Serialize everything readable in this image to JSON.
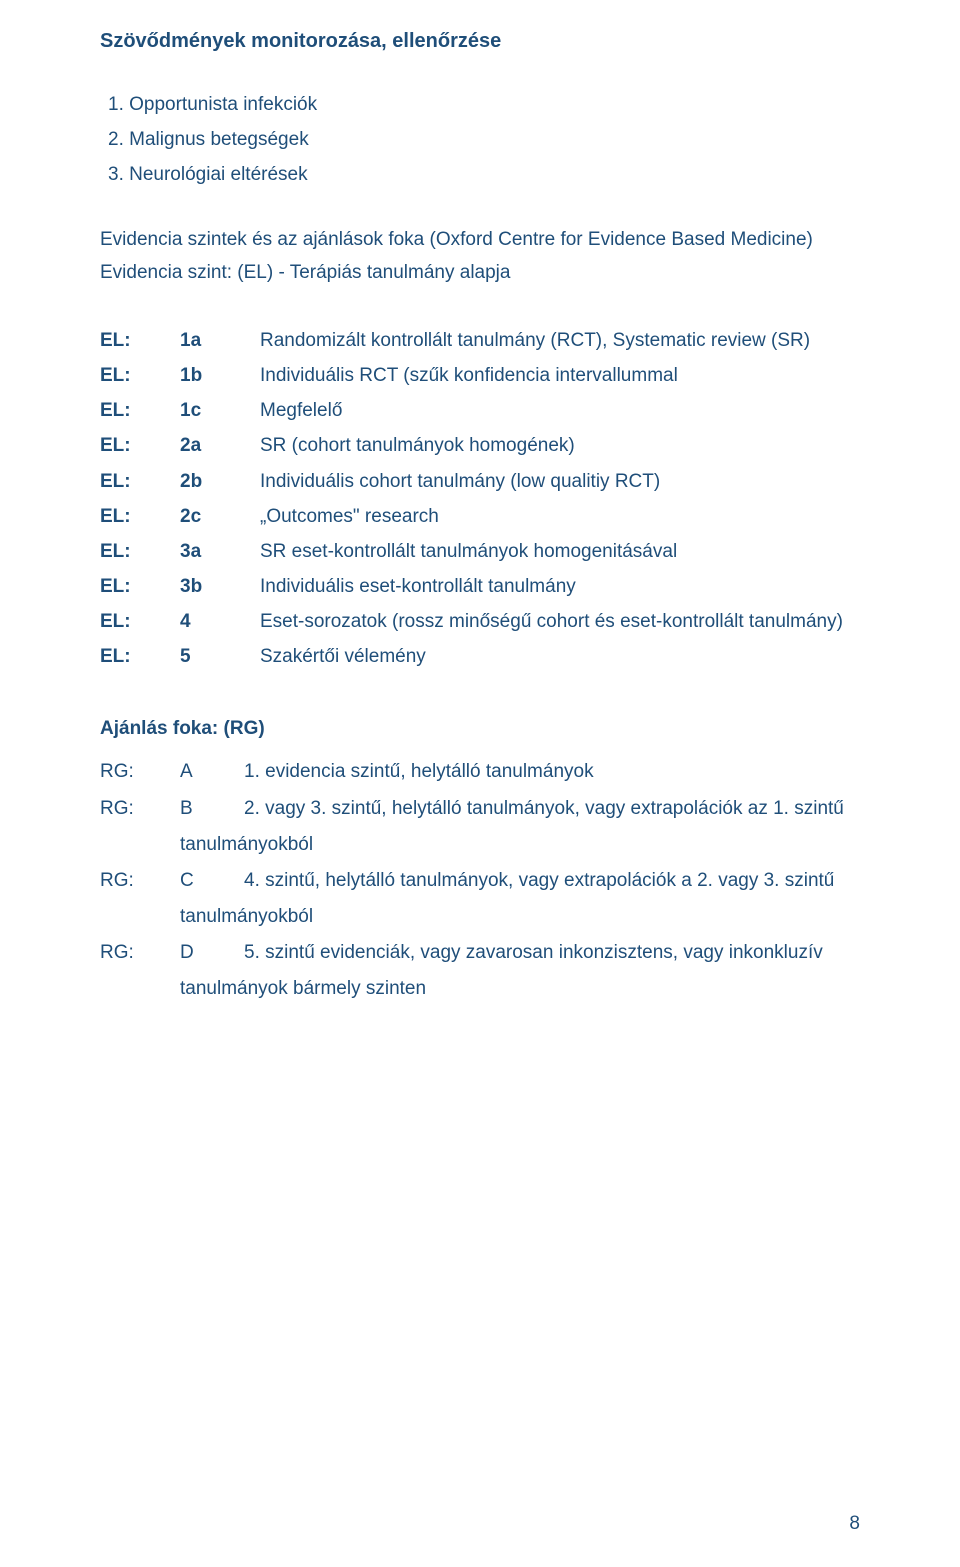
{
  "colors": {
    "text": "#1f4e79",
    "background": "#ffffff"
  },
  "typography": {
    "family": "Arial",
    "body_size_pt": 14,
    "heading_weight": "bold"
  },
  "heading": "Szövődmények monitorozása, ellenőrzése",
  "numbered_list": [
    "1. Opportunista infekciók",
    "2. Malignus betegségek",
    "3. Neurológiai eltérések"
  ],
  "subhead_line1": "Evidencia szintek és az ajánlások foka (Oxford Centre for Evidence Based Medicine)",
  "subhead_line2": "Evidencia szint: (EL) - Terápiás tanulmány alapja",
  "el_rows": [
    {
      "c1": "EL:",
      "c2": "1a",
      "c3": "Randomizált kontrollált tanulmány (RCT), Systematic review (SR)"
    },
    {
      "c1": "EL:",
      "c2": "1b",
      "c3": "Individuális RCT (szűk konfidencia intervallummal"
    },
    {
      "c1": "EL:",
      "c2": "1c",
      "c3": "Megfelelő"
    },
    {
      "c1": "EL:",
      "c2": "2a",
      "c3": "SR (cohort tanulmányok homogének)"
    },
    {
      "c1": "EL:",
      "c2": "2b",
      "c3": "Individuális cohort tanulmány (low qualitiy RCT)"
    },
    {
      "c1": "EL:",
      "c2": "2c",
      "c3": "„Outcomes\" research"
    },
    {
      "c1": "EL:",
      "c2": "3a",
      "c3": "SR eset-kontrollált  tanulmányok homogenitásával"
    },
    {
      "c1": "EL:",
      "c2": "3b",
      "c3": "Individuális eset-kontrollált tanulmány"
    },
    {
      "c1": "EL:",
      "c2": "4",
      "c3": "Eset-sorozatok (rossz minőségű cohort és eset-kontrollált tanulmány)"
    },
    {
      "c1": "EL:",
      "c2": "5",
      "c3": "Szakértői vélemény"
    }
  ],
  "rg_heading": "Ajánlás foka: (RG)",
  "rg_rows": [
    {
      "c1": "RG:",
      "c2": "A",
      "c3": "1. evidencia szintű, helytálló tanulmányok",
      "cont": ""
    },
    {
      "c1": "RG:",
      "c2": "B",
      "c3": "2. vagy 3. szintű, helytálló tanulmányok, vagy extrapolációk az 1. szintű",
      "cont": "tanulmányokból"
    },
    {
      "c1": "RG:",
      "c2": "C",
      "c3": "4. szintű, helytálló tanulmányok, vagy extrapolációk a 2. vagy 3. szintű",
      "cont": "tanulmányokból"
    },
    {
      "c1": "RG:",
      "c2": "D",
      "c3": "5. szintű evidenciák, vagy zavarosan inkonzisztens, vagy inkonkluzív",
      "cont": "tanulmányok bármely szinten"
    }
  ],
  "page_number": "8"
}
